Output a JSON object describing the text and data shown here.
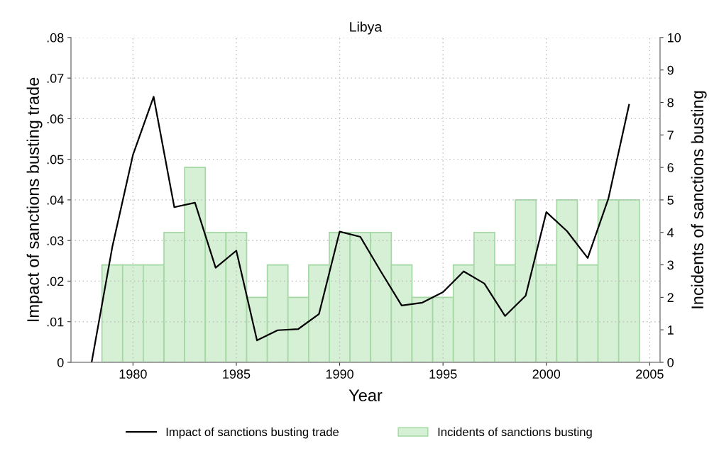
{
  "chart_data": {
    "type": "line",
    "title": "Libya",
    "xlabel": "Year",
    "ylabel": "Impact of sanctions busting trade",
    "y2label": "Incidents of sanctions busting",
    "x": [
      1978,
      1979,
      1980,
      1981,
      1982,
      1983,
      1984,
      1985,
      1986,
      1987,
      1988,
      1989,
      1990,
      1991,
      1992,
      1993,
      1994,
      1995,
      1996,
      1997,
      1998,
      1999,
      2000,
      2001,
      2002,
      2003,
      2004
    ],
    "series": [
      {
        "name": "Impact of sanctions busting trade",
        "color": "#000000",
        "values": [
          0,
          0.0284,
          0.0511,
          0.0654,
          0.0382,
          0.0393,
          0.0233,
          0.0275,
          0.0054,
          0.0079,
          0.0082,
          0.0119,
          0.0322,
          0.0309,
          0.0223,
          0.014,
          0.0147,
          0.0173,
          0.0224,
          0.0194,
          0.0114,
          0.0164,
          0.037,
          0.0323,
          0.0257,
          0.0403,
          0.0634
        ]
      },
      {
        "name": "Incidents of sanctions busting",
        "type": "bar",
        "axis": "y2",
        "color": "#d5f0d5",
        "x": [
          1979,
          1980,
          1981,
          1982,
          1983,
          1984,
          1985,
          1986,
          1987,
          1988,
          1989,
          1990,
          1991,
          1992,
          1993,
          1994,
          1995,
          1996,
          1997,
          1998,
          1999,
          2000,
          2001,
          2002,
          2003,
          2004
        ],
        "values": [
          3,
          3,
          3,
          4,
          6,
          4,
          4,
          2,
          3,
          2,
          3,
          4,
          4,
          4,
          3,
          2,
          2,
          3,
          4,
          3,
          5,
          3,
          5,
          3,
          5,
          5
        ]
      }
    ],
    "xlim": [
      1977,
      2005.5
    ],
    "xticks": [
      1980,
      1985,
      1990,
      1995,
      2000,
      2005
    ],
    "ylim": [
      0,
      0.08
    ],
    "yticks": [
      0,
      {
        "value": 0.01,
        "label": ".01"
      },
      {
        "value": 0.02,
        "label": ".02"
      },
      {
        "value": 0.03,
        "label": ".03"
      },
      {
        "value": 0.04,
        "label": ".04"
      },
      {
        "value": 0.05,
        "label": ".05"
      },
      {
        "value": 0.06,
        "label": ".06"
      },
      {
        "value": 0.07,
        "label": ".07"
      },
      {
        "value": 0.08,
        "label": ".08"
      }
    ],
    "y2lim": [
      0,
      10
    ],
    "y2ticks": [
      0,
      1,
      2,
      3,
      4,
      5,
      6,
      7,
      8,
      9,
      10
    ],
    "grid": true,
    "legend": "bottom",
    "line_style": "solid"
  }
}
